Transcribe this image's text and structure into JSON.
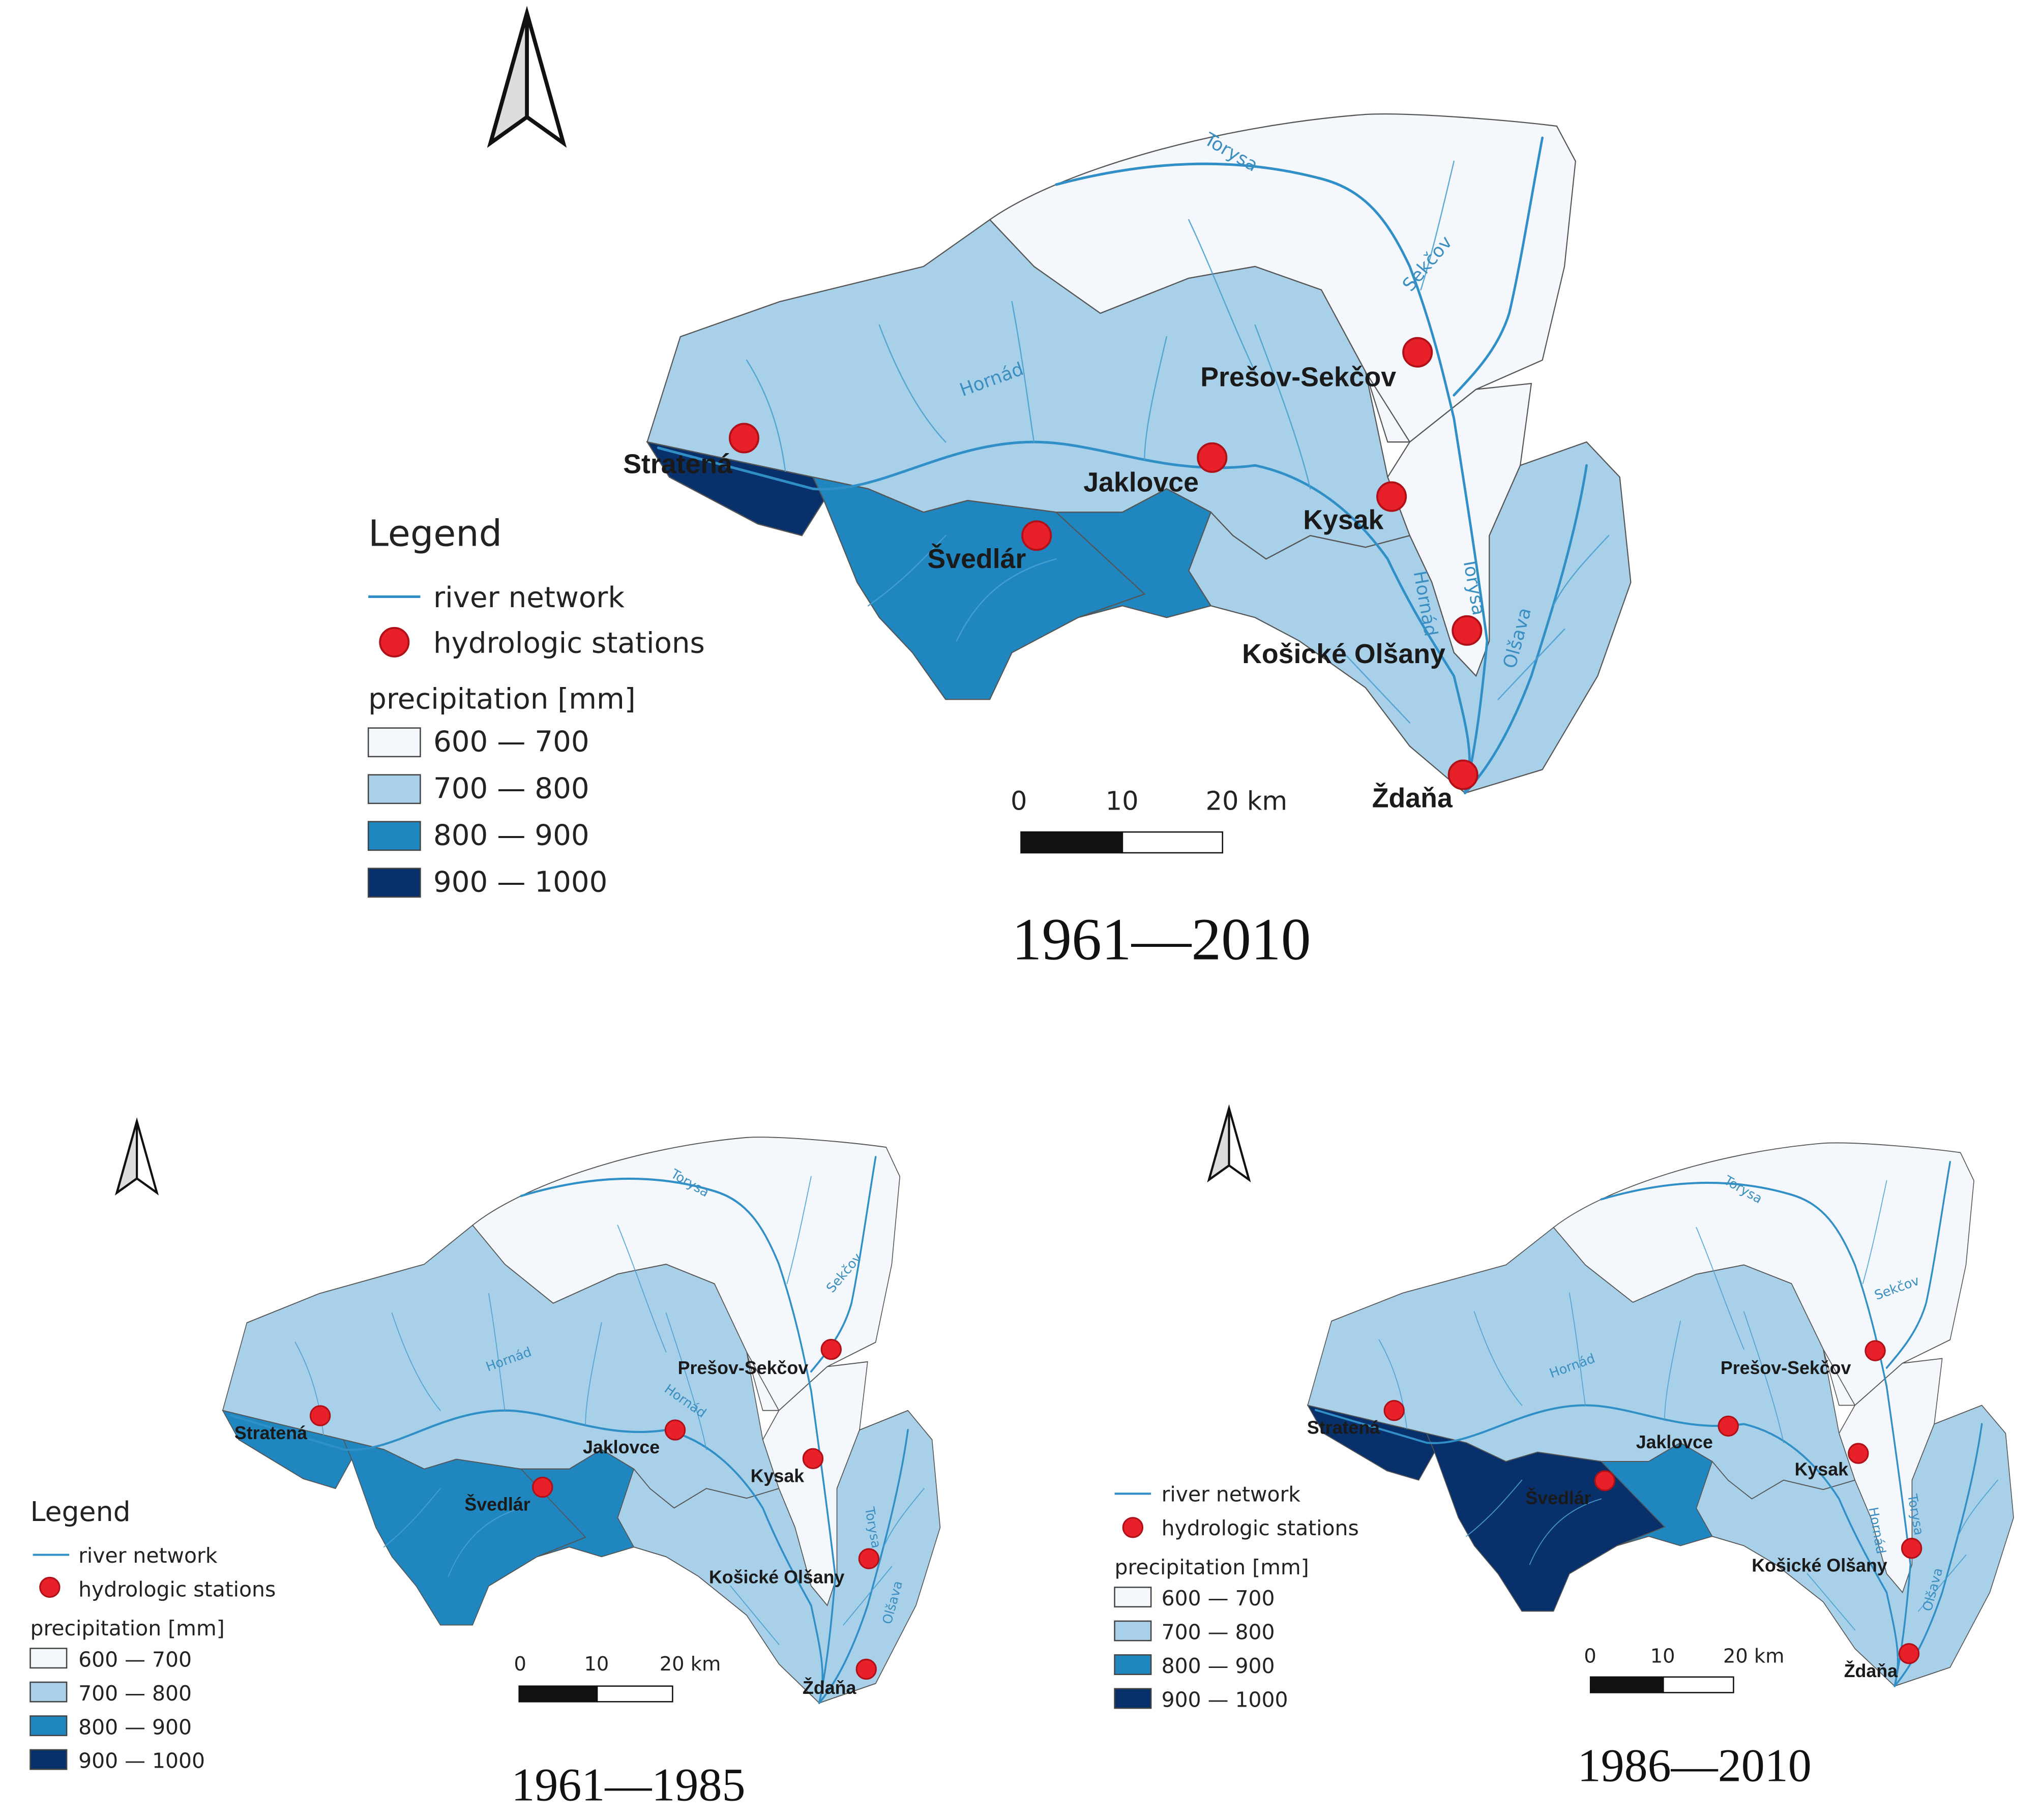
{
  "colors": {
    "class_600_700": "#f4f8fd",
    "class_700_800": "#a9d0e9",
    "class_800_900": "#1f86c0",
    "class_900_1000": "#08306b",
    "river": "#2f8fc6",
    "station": "#e8202a",
    "station_outline": "#b01018"
  },
  "legend": {
    "title": "Legend",
    "river_label": "river network",
    "stations_label": "hydrologic stations",
    "precip_title": "precipitation [mm]",
    "classes": [
      "600 — 700",
      "700 — 800",
      "800 — 900",
      "900 — 1000"
    ]
  },
  "scale_bar": {
    "t0": "0",
    "t1": "10",
    "t2": "20 km"
  },
  "rivers": {
    "torysa": "Torysa",
    "sekcov": "Sekčov",
    "hornad": "Hornád",
    "olsava": "Olšava"
  },
  "stations": {
    "stratena": "Stratená",
    "svedlar": "Švedlár",
    "jaklovce": "Jaklovce",
    "kysak": "Kysak",
    "presov": "Prešov-Sekčov",
    "kosicke": "Košické Olšany",
    "zdana": "Ždaňa"
  },
  "maps": [
    {
      "period": "1961—2010",
      "zone_classes": {
        "stratena_zone": "900 — 1000",
        "svedlar_zone": "800 — 900",
        "jaklovce_zone": "800 — 900"
      }
    },
    {
      "period": "1961—1985",
      "zone_classes": {
        "stratena_zone": "800 — 900",
        "svedlar_zone": "800 — 900",
        "jaklovce_zone": "800 — 900"
      }
    },
    {
      "period": "1986—2010",
      "zone_classes": {
        "stratena_zone": "900 — 1000",
        "svedlar_zone": "900 — 1000",
        "jaklovce_zone": "800 — 900"
      }
    }
  ]
}
